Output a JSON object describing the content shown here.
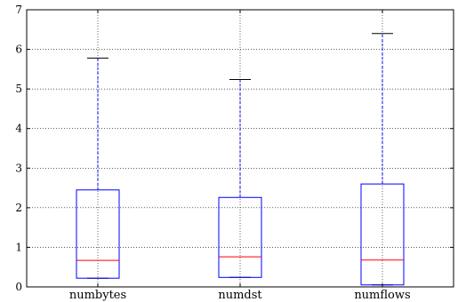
{
  "chart_data": {
    "type": "box",
    "title": "",
    "xlabel": "",
    "ylabel": "",
    "ylim": [
      0,
      7
    ],
    "yticks": [
      "0",
      "1",
      "2",
      "3",
      "4",
      "5",
      "6",
      "7"
    ],
    "grid": true,
    "grid_style": "dotted",
    "colors": {
      "box": "#0000ff",
      "median": "#ff0000",
      "whisker": "#0000ff",
      "cap": "#000000"
    },
    "categories": [
      "numbytes",
      "numdst",
      "numflows"
    ],
    "boxes": [
      {
        "label": "numbytes",
        "whislo": 0.22,
        "q1": 0.22,
        "med": 0.67,
        "q3": 2.45,
        "whishi": 5.78
      },
      {
        "label": "numdst",
        "whislo": 0.24,
        "q1": 0.24,
        "med": 0.76,
        "q3": 2.26,
        "whishi": 5.24
      },
      {
        "label": "numflows",
        "whislo": 0.05,
        "q1": 0.05,
        "med": 0.68,
        "q3": 2.6,
        "whishi": 6.4
      }
    ]
  }
}
